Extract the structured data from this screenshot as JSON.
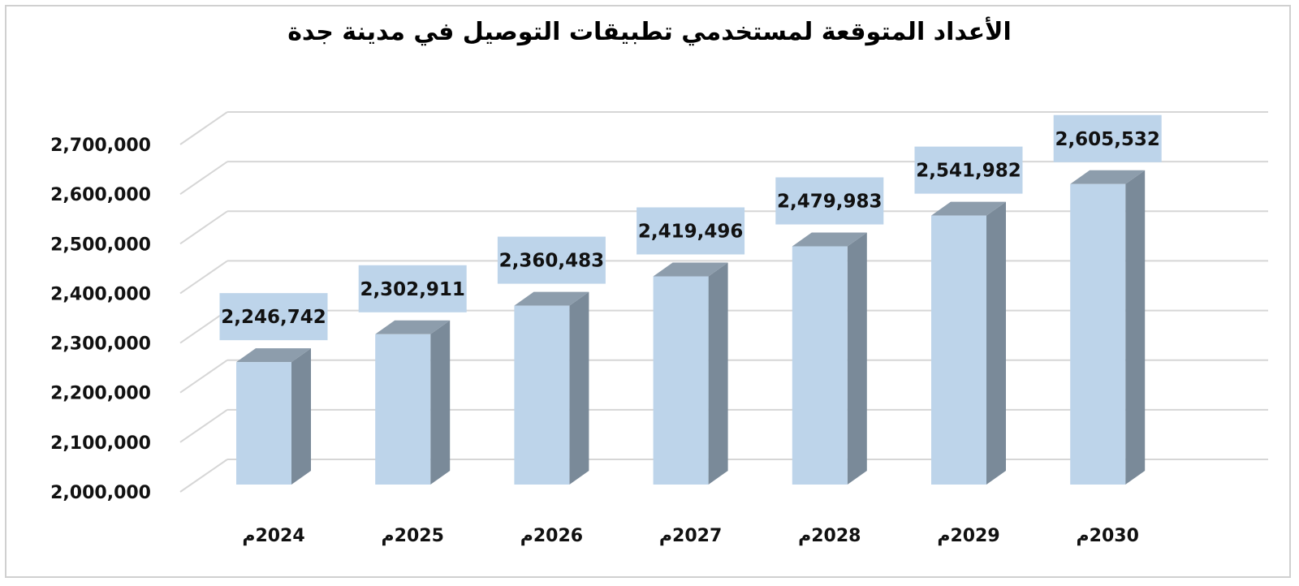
{
  "chart_data": {
    "type": "bar",
    "title": "الأعداد المتوقعة لمستخدمي تطبيقات التوصيل في مدينة جدة",
    "categories": [
      "2024م",
      "2025م",
      "2026م",
      "2027م",
      "2028م",
      "2029م",
      "2030م"
    ],
    "values": [
      2246742,
      2302911,
      2360483,
      2419496,
      2479983,
      2541982,
      2605532
    ],
    "data_labels": [
      "2,246,742",
      "2,302,911",
      "2,360,483",
      "2,419,496",
      "2,479,983",
      "2,541,982",
      "2,605,532"
    ],
    "y_ticks": [
      "2,000,000",
      "2,100,000",
      "2,200,000",
      "2,300,000",
      "2,400,000",
      "2,500,000",
      "2,600,000",
      "2,700,000"
    ],
    "y_tick_values": [
      2000000,
      2100000,
      2200000,
      2300000,
      2400000,
      2500000,
      2600000,
      2700000
    ],
    "ylim": [
      2000000,
      2700000
    ],
    "xlabel": "",
    "ylabel": "",
    "grid": true,
    "legend": "none",
    "style": "3d-column",
    "colors": {
      "front": "#bdd4ea",
      "side": "#7a8a99",
      "top": "#8d9dac",
      "label_bg": "#bdd4ea",
      "grid": "#d6d6d6"
    }
  }
}
